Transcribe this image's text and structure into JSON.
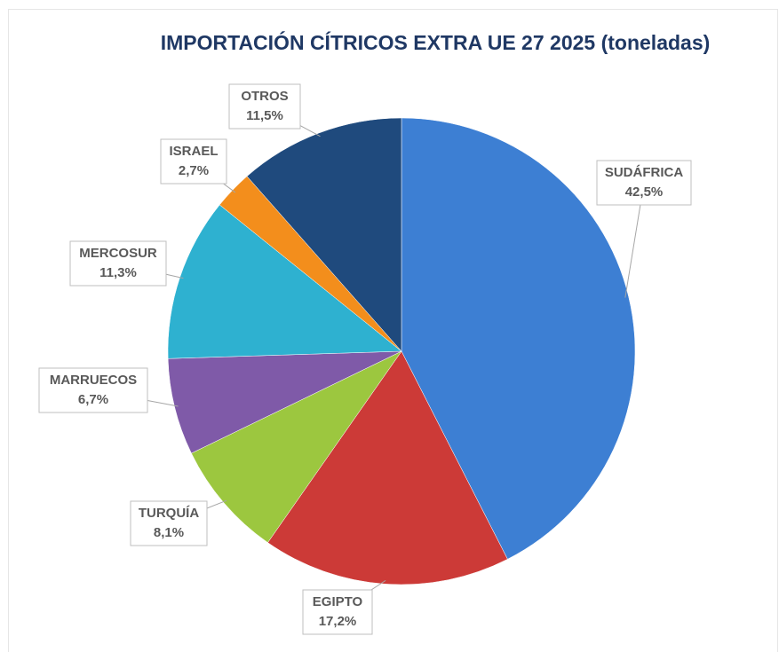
{
  "chart_data": {
    "type": "pie",
    "title": "IMPORTACIÓN CÍTRICOS EXTRA UE 27 2025 (toneladas)",
    "categories": [
      "SUDÁFRICA",
      "EGIPTO",
      "TURQUÍA",
      "MARRUECOS",
      "MERCOSUR",
      "ISRAEL",
      "OTROS"
    ],
    "values": [
      42.5,
      17.2,
      8.1,
      6.7,
      11.3,
      2.7,
      11.5
    ],
    "value_labels": [
      "42,5%",
      "17,2%",
      "8,1%",
      "6,7%",
      "11,3%",
      "2,7%",
      "11,5%"
    ],
    "colors": [
      "#3d7fd3",
      "#cc3a37",
      "#9cc73f",
      "#7f5aa8",
      "#2eb1d0",
      "#f38e1c",
      "#1f4a7d"
    ]
  }
}
